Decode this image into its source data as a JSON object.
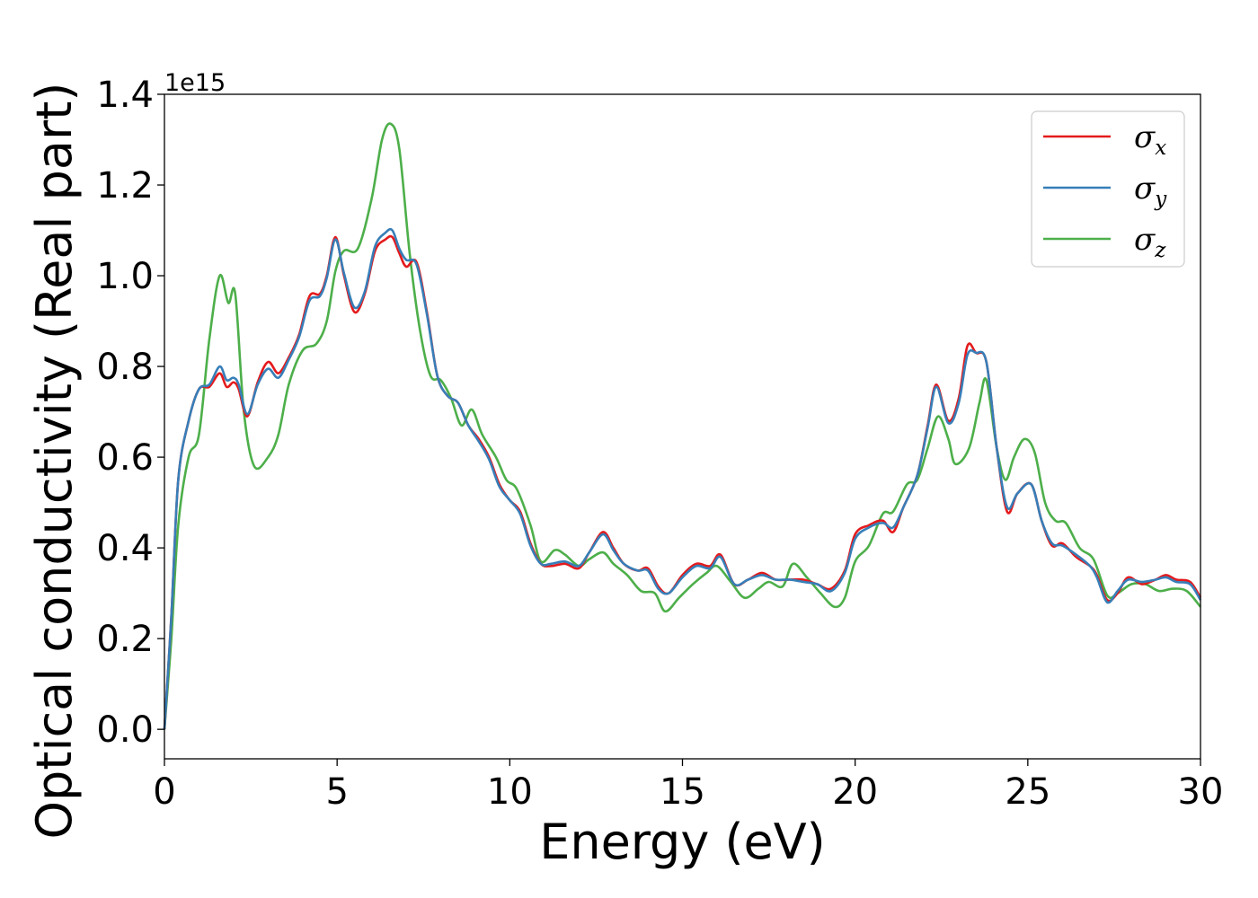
{
  "chart_data": {
    "type": "line",
    "title": "",
    "xlabel": "Energy (eV)",
    "ylabel": "Optical conductivity (Real part)",
    "y_offset_label": "1e15",
    "xlim": [
      0,
      30
    ],
    "ylim": [
      -0.065,
      1.4
    ],
    "x_ticks": [
      0,
      5,
      10,
      15,
      20,
      25,
      30
    ],
    "x_tick_labels": [
      "0",
      "5",
      "10",
      "15",
      "20",
      "25",
      "30"
    ],
    "y_ticks": [
      0.0,
      0.2,
      0.4,
      0.6,
      0.8,
      1.0,
      1.2,
      1.4
    ],
    "y_tick_labels": [
      "0.0",
      "0.2",
      "0.4",
      "0.6",
      "0.8",
      "1.0",
      "1.2",
      "1.4"
    ],
    "grid": false,
    "legend_position": "top-right",
    "series": [
      {
        "name": "σ",
        "name_sub": "x",
        "color": "#e41a1c",
        "points": [
          [
            0,
            0.0
          ],
          [
            0.2,
            0.25
          ],
          [
            0.4,
            0.55
          ],
          [
            0.7,
            0.68
          ],
          [
            1.0,
            0.75
          ],
          [
            1.3,
            0.755
          ],
          [
            1.6,
            0.785
          ],
          [
            1.8,
            0.755
          ],
          [
            2.0,
            0.765
          ],
          [
            2.15,
            0.75
          ],
          [
            2.4,
            0.69
          ],
          [
            2.7,
            0.765
          ],
          [
            3.0,
            0.81
          ],
          [
            3.3,
            0.785
          ],
          [
            3.6,
            0.82
          ],
          [
            3.9,
            0.87
          ],
          [
            4.2,
            0.955
          ],
          [
            4.5,
            0.96
          ],
          [
            4.7,
            1.0
          ],
          [
            4.95,
            1.085
          ],
          [
            5.2,
            1.0
          ],
          [
            5.5,
            0.92
          ],
          [
            5.8,
            0.96
          ],
          [
            6.1,
            1.055
          ],
          [
            6.4,
            1.08
          ],
          [
            6.6,
            1.085
          ],
          [
            6.8,
            1.05
          ],
          [
            7.0,
            1.02
          ],
          [
            7.3,
            1.03
          ],
          [
            7.6,
            0.92
          ],
          [
            7.9,
            0.78
          ],
          [
            8.2,
            0.735
          ],
          [
            8.5,
            0.72
          ],
          [
            8.8,
            0.67
          ],
          [
            9.1,
            0.64
          ],
          [
            9.4,
            0.6
          ],
          [
            9.7,
            0.54
          ],
          [
            10.0,
            0.505
          ],
          [
            10.3,
            0.48
          ],
          [
            10.6,
            0.41
          ],
          [
            10.9,
            0.365
          ],
          [
            11.2,
            0.36
          ],
          [
            11.6,
            0.365
          ],
          [
            12.0,
            0.355
          ],
          [
            12.3,
            0.39
          ],
          [
            12.7,
            0.435
          ],
          [
            13.0,
            0.4
          ],
          [
            13.3,
            0.365
          ],
          [
            13.7,
            0.35
          ],
          [
            14.0,
            0.355
          ],
          [
            14.3,
            0.315
          ],
          [
            14.6,
            0.3
          ],
          [
            15.0,
            0.34
          ],
          [
            15.4,
            0.365
          ],
          [
            15.8,
            0.36
          ],
          [
            16.1,
            0.385
          ],
          [
            16.5,
            0.32
          ],
          [
            16.9,
            0.33
          ],
          [
            17.3,
            0.345
          ],
          [
            17.7,
            0.33
          ],
          [
            18.1,
            0.33
          ],
          [
            18.5,
            0.33
          ],
          [
            18.9,
            0.32
          ],
          [
            19.3,
            0.31
          ],
          [
            19.7,
            0.35
          ],
          [
            20.0,
            0.43
          ],
          [
            20.4,
            0.45
          ],
          [
            20.8,
            0.46
          ],
          [
            21.1,
            0.435
          ],
          [
            21.4,
            0.49
          ],
          [
            21.8,
            0.56
          ],
          [
            22.1,
            0.67
          ],
          [
            22.35,
            0.76
          ],
          [
            22.7,
            0.68
          ],
          [
            23.0,
            0.73
          ],
          [
            23.25,
            0.845
          ],
          [
            23.5,
            0.83
          ],
          [
            23.8,
            0.81
          ],
          [
            24.1,
            0.62
          ],
          [
            24.4,
            0.48
          ],
          [
            24.7,
            0.52
          ],
          [
            25.1,
            0.54
          ],
          [
            25.4,
            0.46
          ],
          [
            25.7,
            0.405
          ],
          [
            26.0,
            0.41
          ],
          [
            26.4,
            0.38
          ],
          [
            26.8,
            0.36
          ],
          [
            27.0,
            0.34
          ],
          [
            27.3,
            0.285
          ],
          [
            27.6,
            0.3
          ],
          [
            27.9,
            0.335
          ],
          [
            28.3,
            0.32
          ],
          [
            28.7,
            0.33
          ],
          [
            29.0,
            0.34
          ],
          [
            29.3,
            0.33
          ],
          [
            29.7,
            0.325
          ],
          [
            30.0,
            0.29
          ]
        ]
      },
      {
        "name": "σ",
        "name_sub": "y",
        "color": "#377eb8",
        "points": [
          [
            0,
            0.0
          ],
          [
            0.2,
            0.25
          ],
          [
            0.4,
            0.55
          ],
          [
            0.7,
            0.68
          ],
          [
            1.0,
            0.75
          ],
          [
            1.3,
            0.76
          ],
          [
            1.6,
            0.8
          ],
          [
            1.8,
            0.77
          ],
          [
            2.0,
            0.775
          ],
          [
            2.15,
            0.76
          ],
          [
            2.4,
            0.695
          ],
          [
            2.7,
            0.76
          ],
          [
            3.0,
            0.795
          ],
          [
            3.3,
            0.775
          ],
          [
            3.6,
            0.815
          ],
          [
            3.9,
            0.865
          ],
          [
            4.2,
            0.945
          ],
          [
            4.5,
            0.955
          ],
          [
            4.7,
            0.995
          ],
          [
            4.95,
            1.08
          ],
          [
            5.2,
            1.005
          ],
          [
            5.5,
            0.93
          ],
          [
            5.8,
            0.965
          ],
          [
            6.1,
            1.065
          ],
          [
            6.4,
            1.095
          ],
          [
            6.6,
            1.1
          ],
          [
            6.8,
            1.06
          ],
          [
            7.0,
            1.035
          ],
          [
            7.3,
            1.025
          ],
          [
            7.6,
            0.915
          ],
          [
            7.9,
            0.78
          ],
          [
            8.2,
            0.735
          ],
          [
            8.5,
            0.72
          ],
          [
            8.8,
            0.67
          ],
          [
            9.1,
            0.635
          ],
          [
            9.4,
            0.595
          ],
          [
            9.7,
            0.535
          ],
          [
            10.0,
            0.505
          ],
          [
            10.3,
            0.475
          ],
          [
            10.6,
            0.405
          ],
          [
            10.9,
            0.365
          ],
          [
            11.2,
            0.365
          ],
          [
            11.6,
            0.37
          ],
          [
            12.0,
            0.36
          ],
          [
            12.3,
            0.39
          ],
          [
            12.7,
            0.43
          ],
          [
            13.0,
            0.395
          ],
          [
            13.3,
            0.365
          ],
          [
            13.7,
            0.35
          ],
          [
            14.0,
            0.35
          ],
          [
            14.3,
            0.31
          ],
          [
            14.6,
            0.3
          ],
          [
            15.0,
            0.335
          ],
          [
            15.4,
            0.36
          ],
          [
            15.8,
            0.355
          ],
          [
            16.1,
            0.38
          ],
          [
            16.5,
            0.32
          ],
          [
            16.9,
            0.33
          ],
          [
            17.3,
            0.34
          ],
          [
            17.7,
            0.33
          ],
          [
            18.1,
            0.33
          ],
          [
            18.5,
            0.325
          ],
          [
            18.9,
            0.32
          ],
          [
            19.3,
            0.305
          ],
          [
            19.7,
            0.345
          ],
          [
            20.0,
            0.42
          ],
          [
            20.4,
            0.445
          ],
          [
            20.8,
            0.455
          ],
          [
            21.1,
            0.445
          ],
          [
            21.4,
            0.49
          ],
          [
            21.8,
            0.56
          ],
          [
            22.1,
            0.665
          ],
          [
            22.35,
            0.755
          ],
          [
            22.7,
            0.675
          ],
          [
            23.0,
            0.72
          ],
          [
            23.25,
            0.825
          ],
          [
            23.5,
            0.83
          ],
          [
            23.8,
            0.81
          ],
          [
            24.1,
            0.62
          ],
          [
            24.4,
            0.49
          ],
          [
            24.7,
            0.52
          ],
          [
            25.1,
            0.54
          ],
          [
            25.4,
            0.46
          ],
          [
            25.7,
            0.41
          ],
          [
            26.0,
            0.405
          ],
          [
            26.4,
            0.385
          ],
          [
            26.8,
            0.36
          ],
          [
            27.0,
            0.335
          ],
          [
            27.3,
            0.28
          ],
          [
            27.6,
            0.305
          ],
          [
            27.9,
            0.33
          ],
          [
            28.3,
            0.325
          ],
          [
            28.7,
            0.33
          ],
          [
            29.0,
            0.335
          ],
          [
            29.3,
            0.325
          ],
          [
            29.7,
            0.32
          ],
          [
            30.0,
            0.285
          ]
        ]
      },
      {
        "name": "σ",
        "name_sub": "z",
        "color": "#4daf4a",
        "points": [
          [
            0,
            0.0
          ],
          [
            0.2,
            0.2
          ],
          [
            0.4,
            0.45
          ],
          [
            0.7,
            0.6
          ],
          [
            1.0,
            0.65
          ],
          [
            1.3,
            0.86
          ],
          [
            1.6,
            1.0
          ],
          [
            1.85,
            0.94
          ],
          [
            2.05,
            0.96
          ],
          [
            2.3,
            0.7
          ],
          [
            2.6,
            0.58
          ],
          [
            3.0,
            0.6
          ],
          [
            3.3,
            0.65
          ],
          [
            3.6,
            0.76
          ],
          [
            4.0,
            0.835
          ],
          [
            4.4,
            0.85
          ],
          [
            4.7,
            0.9
          ],
          [
            4.95,
            1.01
          ],
          [
            5.2,
            1.055
          ],
          [
            5.6,
            1.06
          ],
          [
            6.0,
            1.17
          ],
          [
            6.3,
            1.3
          ],
          [
            6.55,
            1.335
          ],
          [
            6.8,
            1.28
          ],
          [
            7.1,
            1.05
          ],
          [
            7.4,
            0.88
          ],
          [
            7.7,
            0.78
          ],
          [
            8.0,
            0.77
          ],
          [
            8.3,
            0.73
          ],
          [
            8.6,
            0.67
          ],
          [
            8.9,
            0.705
          ],
          [
            9.2,
            0.65
          ],
          [
            9.6,
            0.6
          ],
          [
            9.9,
            0.55
          ],
          [
            10.2,
            0.53
          ],
          [
            10.6,
            0.45
          ],
          [
            10.9,
            0.37
          ],
          [
            11.3,
            0.395
          ],
          [
            11.6,
            0.385
          ],
          [
            12.0,
            0.36
          ],
          [
            12.3,
            0.375
          ],
          [
            12.7,
            0.39
          ],
          [
            13.0,
            0.365
          ],
          [
            13.4,
            0.34
          ],
          [
            13.8,
            0.305
          ],
          [
            14.2,
            0.3
          ],
          [
            14.5,
            0.26
          ],
          [
            14.9,
            0.29
          ],
          [
            15.3,
            0.32
          ],
          [
            15.7,
            0.345
          ],
          [
            16.0,
            0.36
          ],
          [
            16.4,
            0.325
          ],
          [
            16.8,
            0.29
          ],
          [
            17.2,
            0.31
          ],
          [
            17.5,
            0.325
          ],
          [
            17.9,
            0.315
          ],
          [
            18.2,
            0.365
          ],
          [
            18.6,
            0.335
          ],
          [
            19.0,
            0.3
          ],
          [
            19.4,
            0.27
          ],
          [
            19.7,
            0.29
          ],
          [
            20.0,
            0.37
          ],
          [
            20.4,
            0.405
          ],
          [
            20.8,
            0.475
          ],
          [
            21.1,
            0.48
          ],
          [
            21.5,
            0.54
          ],
          [
            21.8,
            0.55
          ],
          [
            22.1,
            0.62
          ],
          [
            22.4,
            0.69
          ],
          [
            22.7,
            0.64
          ],
          [
            22.9,
            0.585
          ],
          [
            23.3,
            0.62
          ],
          [
            23.6,
            0.72
          ],
          [
            23.8,
            0.77
          ],
          [
            24.1,
            0.62
          ],
          [
            24.35,
            0.55
          ],
          [
            24.6,
            0.6
          ],
          [
            24.9,
            0.64
          ],
          [
            25.2,
            0.61
          ],
          [
            25.5,
            0.5
          ],
          [
            25.8,
            0.46
          ],
          [
            26.1,
            0.455
          ],
          [
            26.5,
            0.4
          ],
          [
            26.9,
            0.375
          ],
          [
            27.3,
            0.295
          ],
          [
            27.6,
            0.3
          ],
          [
            28.0,
            0.32
          ],
          [
            28.4,
            0.32
          ],
          [
            28.8,
            0.305
          ],
          [
            29.2,
            0.31
          ],
          [
            29.6,
            0.305
          ],
          [
            30.0,
            0.27
          ]
        ]
      }
    ]
  }
}
